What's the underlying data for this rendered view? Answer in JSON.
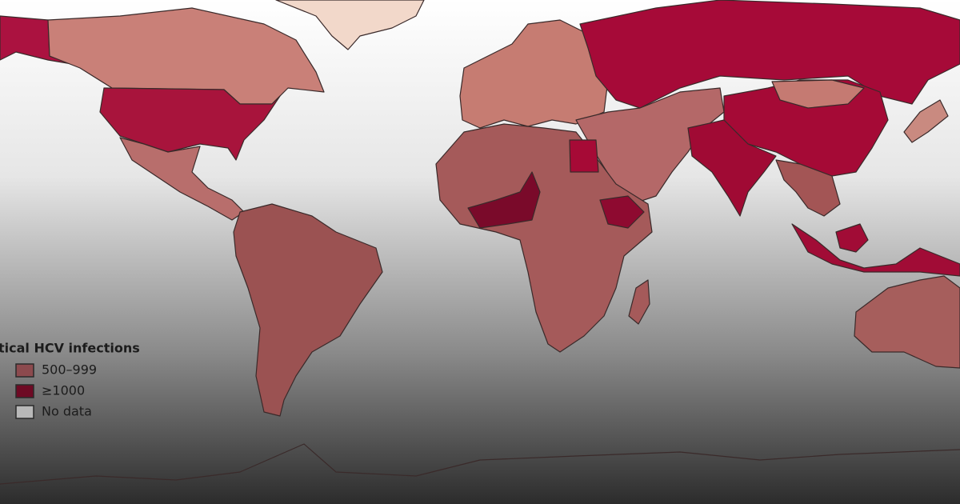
{
  "legend": {
    "title": "tical HCV infections",
    "items": [
      {
        "label": "500–999",
        "color": "#8c4a4e"
      },
      {
        "label": "≥1000",
        "color": "#6e0a24"
      },
      {
        "label": "No data",
        "color": "#b8b8b8"
      }
    ]
  }
}
